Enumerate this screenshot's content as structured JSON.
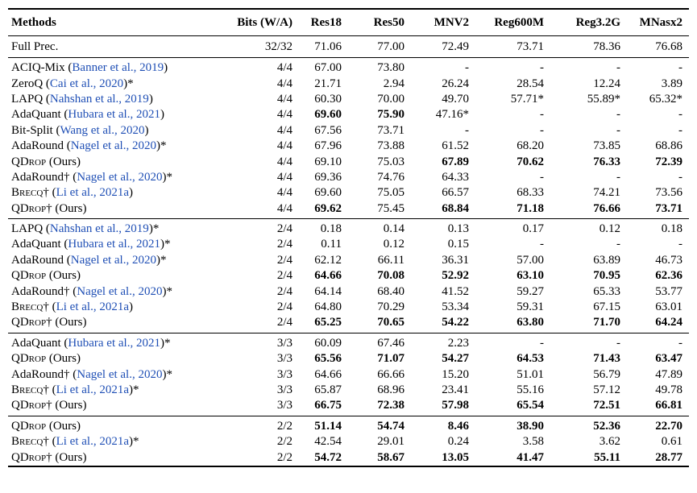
{
  "headers": [
    "Methods",
    "Bits (W/A)",
    "Res18",
    "Res50",
    "MNV2",
    "Reg600M",
    "Reg3.2G",
    "MNasx2"
  ],
  "full_precision": {
    "method": "Full Prec.",
    "bits": "32/32",
    "values": [
      "71.06",
      "77.00",
      "72.49",
      "73.71",
      "78.36",
      "76.68"
    ]
  },
  "groups": [
    {
      "rows": [
        {
          "name": "ACIQ-Mix",
          "cite": "Banner et al., 2019",
          "suffix": "",
          "bits": "4/4",
          "values": [
            "67.00",
            "73.80",
            "-",
            "-",
            "-",
            "-"
          ],
          "bold": []
        },
        {
          "name": "ZeroQ",
          "cite": "Cai et al., 2020",
          "suffix": "*",
          "bits": "4/4",
          "values": [
            "21.71",
            "2.94",
            "26.24",
            "28.54",
            "12.24",
            "3.89"
          ],
          "bold": []
        },
        {
          "name": "LAPQ",
          "cite": "Nahshan et al., 2019",
          "suffix": "",
          "bits": "4/4",
          "values": [
            "60.30",
            "70.00",
            "49.70",
            "57.71*",
            "55.89*",
            "65.32*"
          ],
          "bold": []
        },
        {
          "name": "AdaQuant",
          "cite": "Hubara et al., 2021",
          "suffix": "",
          "bits": "4/4",
          "values": [
            "69.60",
            "75.90",
            "47.16*",
            "-",
            "-",
            "-"
          ],
          "bold": [
            0,
            1
          ]
        },
        {
          "name": "Bit-Split",
          "cite": "Wang et al., 2020",
          "suffix": "",
          "bits": "4/4",
          "values": [
            "67.56",
            "73.71",
            "-",
            "-",
            "-",
            "-"
          ],
          "bold": []
        },
        {
          "name": "AdaRound",
          "cite": "Nagel et al., 2020",
          "suffix": "*",
          "bits": "4/4",
          "values": [
            "67.96",
            "73.88",
            "61.52",
            "68.20",
            "73.85",
            "68.86"
          ],
          "bold": []
        },
        {
          "name": "QDrop",
          "smallcaps": true,
          "cite": "",
          "suffix": " (Ours)",
          "bits": "4/4",
          "values": [
            "69.10",
            "75.03",
            "67.89",
            "70.62",
            "76.33",
            "72.39"
          ],
          "bold": [
            2,
            3,
            4,
            5
          ]
        },
        {
          "name": "AdaRound†",
          "cite": "Nagel et al., 2020",
          "suffix": "*",
          "bits": "4/4",
          "values": [
            "69.36",
            "74.76",
            "64.33",
            "-",
            "-",
            "-"
          ],
          "bold": []
        },
        {
          "name": "Brecq†",
          "smallcaps": true,
          "cite": "Li et al., 2021a",
          "suffix": "",
          "bits": "4/4",
          "values": [
            "69.60",
            "75.05",
            "66.57",
            "68.33",
            "74.21",
            "73.56"
          ],
          "bold": []
        },
        {
          "name": "QDrop†",
          "smallcaps": true,
          "cite": "",
          "suffix": " (Ours)",
          "bits": "4/4",
          "values": [
            "69.62",
            "75.45",
            "68.84",
            "71.18",
            "76.66",
            "73.71"
          ],
          "bold": [
            0,
            2,
            3,
            4,
            5
          ]
        }
      ]
    },
    {
      "rows": [
        {
          "name": "LAPQ",
          "cite": "Nahshan et al., 2019",
          "suffix": "*",
          "bits": "2/4",
          "values": [
            "0.18",
            "0.14",
            "0.13",
            "0.17",
            "0.12",
            "0.18"
          ],
          "bold": []
        },
        {
          "name": "AdaQuant",
          "cite": "Hubara et al., 2021",
          "suffix": "*",
          "bits": "2/4",
          "values": [
            "0.11",
            "0.12",
            "0.15",
            "-",
            "-",
            "-"
          ],
          "bold": []
        },
        {
          "name": "AdaRound",
          "cite": "Nagel et al., 2020",
          "suffix": "*",
          "bits": "2/4",
          "values": [
            "62.12",
            "66.11",
            "36.31",
            "57.00",
            "63.89",
            "46.73"
          ],
          "bold": []
        },
        {
          "name": "QDrop",
          "smallcaps": true,
          "cite": "",
          "suffix": " (Ours)",
          "bits": "2/4",
          "values": [
            "64.66",
            "70.08",
            "52.92",
            "63.10",
            "70.95",
            "62.36"
          ],
          "bold": [
            0,
            1,
            2,
            3,
            4,
            5
          ]
        },
        {
          "name": "AdaRound†",
          "cite": "Nagel et al., 2020",
          "suffix": "*",
          "bits": "2/4",
          "values": [
            "64.14",
            "68.40",
            "41.52",
            "59.27",
            "65.33",
            "53.77"
          ],
          "bold": []
        },
        {
          "name": "Brecq†",
          "smallcaps": true,
          "cite": "Li et al., 2021a",
          "suffix": "",
          "bits": "2/4",
          "values": [
            "64.80",
            "70.29",
            "53.34",
            "59.31",
            "67.15",
            "63.01"
          ],
          "bold": []
        },
        {
          "name": "QDrop†",
          "smallcaps": true,
          "cite": "",
          "suffix": " (Ours)",
          "bits": "2/4",
          "values": [
            "65.25",
            "70.65",
            "54.22",
            "63.80",
            "71.70",
            "64.24"
          ],
          "bold": [
            0,
            1,
            2,
            3,
            4,
            5
          ]
        }
      ]
    },
    {
      "rows": [
        {
          "name": "AdaQuant",
          "cite": "Hubara et al., 2021",
          "suffix": "*",
          "bits": "3/3",
          "values": [
            "60.09",
            "67.46",
            "2.23",
            "-",
            "-",
            "-"
          ],
          "bold": []
        },
        {
          "name": "QDrop",
          "smallcaps": true,
          "cite": "",
          "suffix": " (Ours)",
          "bits": "3/3",
          "values": [
            "65.56",
            "71.07",
            "54.27",
            "64.53",
            "71.43",
            "63.47"
          ],
          "bold": [
            0,
            1,
            2,
            3,
            4,
            5
          ]
        },
        {
          "name": "AdaRound†",
          "cite": "Nagel et al., 2020",
          "suffix": "*",
          "bits": "3/3",
          "values": [
            "64.66",
            "66.66",
            "15.20",
            "51.01",
            "56.79",
            "47.89"
          ],
          "bold": []
        },
        {
          "name": "Brecq†",
          "smallcaps": true,
          "cite": "Li et al., 2021a",
          "suffix": "*",
          "bits": "3/3",
          "values": [
            "65.87",
            "68.96",
            "23.41",
            "55.16",
            "57.12",
            "49.78"
          ],
          "bold": []
        },
        {
          "name": "QDrop†",
          "smallcaps": true,
          "cite": "",
          "suffix": " (Ours)",
          "bits": "3/3",
          "values": [
            "66.75",
            "72.38",
            "57.98",
            "65.54",
            "72.51",
            "66.81"
          ],
          "bold": [
            0,
            1,
            2,
            3,
            4,
            5
          ]
        }
      ]
    },
    {
      "rows": [
        {
          "name": "QDrop",
          "smallcaps": true,
          "cite": "",
          "suffix": " (Ours)",
          "bits": "2/2",
          "values": [
            "51.14",
            "54.74",
            "8.46",
            "38.90",
            "52.36",
            "22.70"
          ],
          "bold": [
            0,
            1,
            2,
            3,
            4,
            5
          ]
        },
        {
          "name": "Brecq†",
          "smallcaps": true,
          "cite": "Li et al., 2021a",
          "suffix": "*",
          "bits": "2/2",
          "values": [
            "42.54",
            "29.01",
            "0.24",
            "3.58",
            "3.62",
            "0.61"
          ],
          "bold": []
        },
        {
          "name": "QDrop†",
          "smallcaps": true,
          "cite": "",
          "suffix": " (Ours)",
          "bits": "2/2",
          "values": [
            "54.72",
            "58.67",
            "13.05",
            "41.47",
            "55.11",
            "28.77"
          ],
          "bold": [
            0,
            1,
            2,
            3,
            4,
            5
          ]
        }
      ]
    }
  ]
}
